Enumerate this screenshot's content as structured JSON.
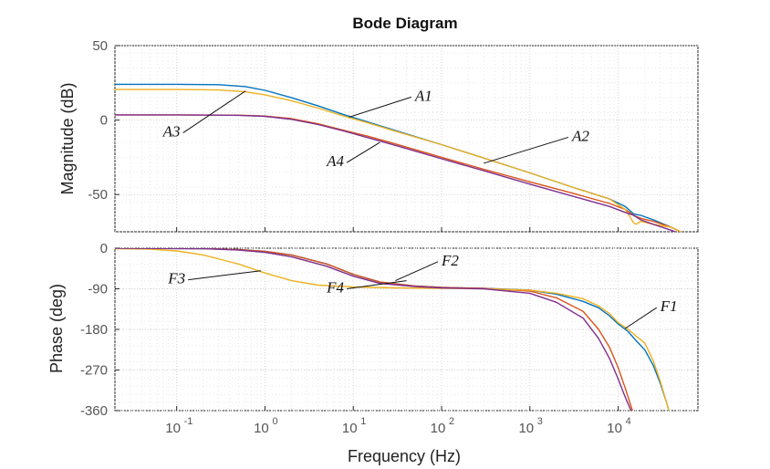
{
  "chart_data": {
    "type": "line",
    "title": "Bode Diagram",
    "xlabel": "Frequency (Hz)",
    "x_scale": "log",
    "xlim": [
      0.02,
      80000
    ],
    "x_ticks": [
      {
        "value": 0.1,
        "base": "10",
        "exp": "-1"
      },
      {
        "value": 1,
        "base": "10",
        "exp": "0"
      },
      {
        "value": 10,
        "base": "10",
        "exp": "1"
      },
      {
        "value": 100,
        "base": "10",
        "exp": "2"
      },
      {
        "value": 1000,
        "base": "10",
        "exp": "3"
      },
      {
        "value": 10000,
        "base": "10",
        "exp": "4"
      }
    ],
    "grid": true,
    "colors": {
      "A1": "#0072bd",
      "A2": "#d95319",
      "A3": "#edb120",
      "A4": "#7e2f8e"
    },
    "panels": [
      {
        "id": "magnitude",
        "ylabel": "Magnitude (dB)",
        "ylim": [
          -75,
          50
        ],
        "y_ticks": [
          "50",
          "0",
          "-50"
        ],
        "y_tick_values": [
          50,
          0,
          -50
        ],
        "series": [
          {
            "name": "A1",
            "color_key": "A1",
            "x": [
              0.02,
              0.1,
              0.3,
              0.6,
              1,
              2,
              4,
              8,
              15,
              30,
              100,
              300,
              1000,
              3000,
              8000,
              12000,
              15000,
              18000,
              25000,
              40000,
              60000,
              80000
            ],
            "values": [
              24,
              24,
              23.8,
              22.5,
              20,
              15,
              9.5,
              3.5,
              -1.5,
              -7,
              -16.5,
              -25.5,
              -35.5,
              -45,
              -53,
              -58,
              -63,
              -64,
              -67,
              -72,
              -77,
              -80
            ]
          },
          {
            "name": "A2",
            "color_key": "A2",
            "x": [
              0.02,
              0.1,
              0.5,
              1,
              2,
              4,
              8,
              15,
              30,
              100,
              300,
              1000,
              3000,
              8000,
              12000,
              15000,
              18000,
              25000,
              40000,
              60000,
              80000
            ],
            "values": [
              3.5,
              3.5,
              3.3,
              2.7,
              1,
              -2.5,
              -7,
              -11,
              -16,
              -25,
              -33,
              -41.5,
              -49,
              -56,
              -60,
              -64,
              -66,
              -68,
              -72,
              -77,
              -80
            ]
          },
          {
            "name": "A3",
            "color_key": "A3",
            "x": [
              0.02,
              0.1,
              0.3,
              0.6,
              1,
              2,
              4,
              8,
              15,
              30,
              100,
              300,
              1000,
              3000,
              8000,
              12000,
              15000,
              16000,
              18000,
              25000,
              40000,
              60000,
              80000
            ],
            "values": [
              20.5,
              20.5,
              20.2,
              19,
              17,
              13,
              8,
              2.5,
              -2,
              -7.5,
              -16.5,
              -25.5,
              -35.5,
              -45,
              -53,
              -60,
              -69,
              -70,
              -68,
              -70,
              -72,
              -77,
              -80
            ]
          },
          {
            "name": "A4",
            "color_key": "A4",
            "x": [
              0.02,
              0.1,
              0.5,
              1,
              2,
              4,
              8,
              15,
              30,
              100,
              300,
              1000,
              3000,
              8000,
              12000,
              15000,
              18000,
              25000,
              40000,
              60000,
              80000
            ],
            "values": [
              3.5,
              3.5,
              3.2,
              2.5,
              0.5,
              -3,
              -7.5,
              -12,
              -17,
              -26,
              -34,
              -43,
              -51,
              -58,
              -62,
              -64,
              -67,
              -70,
              -74,
              -78,
              -81
            ]
          }
        ],
        "annotations": [
          {
            "label": "A1",
            "target": [
              9,
              2
            ],
            "text_at": [
              50,
              13
            ]
          },
          {
            "label": "A2",
            "target": [
              300,
              -29
            ],
            "text_at": [
              3000,
              -14
            ]
          },
          {
            "label": "A3",
            "target": [
              0.6,
              19.5
            ],
            "text_at": [
              0.07,
              -11
            ]
          },
          {
            "label": "A4",
            "target": [
              20,
              -15
            ],
            "text_at": [
              5,
              -31
            ]
          }
        ]
      },
      {
        "id": "phase",
        "ylabel": "Phase (deg)",
        "ylim": [
          -360,
          0
        ],
        "y_ticks": [
          "0",
          "-90",
          "-180",
          "-270",
          "-360"
        ],
        "y_tick_values": [
          0,
          -90,
          -180,
          -270,
          -360
        ],
        "series": [
          {
            "name": "F1",
            "color_key": "A1",
            "x": [
              0.02,
              0.2,
              0.5,
              1,
              2,
              5,
              10,
              20,
              50,
              100,
              300,
              1000,
              2000,
              4000,
              6000,
              8000,
              10000,
              13000,
              16000,
              20000,
              25000,
              30000,
              35000,
              40000
            ],
            "values": [
              0,
              -1,
              -3,
              -7,
              -15,
              -35,
              -58,
              -75,
              -84,
              -87,
              -89,
              -93,
              -102,
              -118,
              -132,
              -150,
              -168,
              -185,
              -205,
              -225,
              -260,
              -300,
              -340,
              -380
            ]
          },
          {
            "name": "F2",
            "color_key": "A2",
            "x": [
              0.02,
              0.2,
              0.5,
              1,
              2,
              5,
              10,
              20,
              50,
              100,
              300,
              1000,
              2000,
              4000,
              6000,
              8000,
              10000,
              12000,
              14000,
              15000,
              16000
            ],
            "values": [
              0,
              -1,
              -3,
              -7,
              -15,
              -35,
              -58,
              -75,
              -84,
              -87,
              -89,
              -95,
              -110,
              -140,
              -180,
              -220,
              -265,
              -310,
              -350,
              -370,
              -390
            ]
          },
          {
            "name": "F3",
            "color_key": "A3",
            "x": [
              0.02,
              0.05,
              0.1,
              0.2,
              0.5,
              1,
              2,
              4,
              10,
              30,
              100,
              300,
              1000,
              2000,
              4000,
              6000,
              8000,
              10000,
              13000,
              16000,
              20000,
              25000,
              30000,
              35000,
              40000
            ],
            "values": [
              -1,
              -2,
              -6,
              -15,
              -35,
              -55,
              -72,
              -82,
              -86,
              -88,
              -89,
              -90,
              -93,
              -100,
              -112,
              -128,
              -145,
              -165,
              -180,
              -195,
              -210,
              -250,
              -295,
              -340,
              -380
            ]
          },
          {
            "name": "F4",
            "color_key": "A4",
            "x": [
              0.02,
              0.2,
              0.5,
              1,
              2,
              5,
              10,
              20,
              50,
              100,
              300,
              1000,
              2000,
              4000,
              6000,
              8000,
              10000,
              12000,
              14000,
              15000,
              16000
            ],
            "values": [
              0,
              -1,
              -4,
              -9,
              -19,
              -40,
              -62,
              -78,
              -85,
              -88,
              -90,
              -100,
              -120,
              -155,
              -200,
              -245,
              -290,
              -330,
              -360,
              -380,
              -390
            ]
          }
        ],
        "annotations": [
          {
            "label": "F1",
            "target": [
              12000,
              -178
            ],
            "text_at": [
              30000,
              -140
            ]
          },
          {
            "label": "F2",
            "target": [
              30,
              -72
            ],
            "text_at": [
              100,
              -38
            ]
          },
          {
            "label": "F3",
            "target": [
              0.9,
              -50
            ],
            "text_at": [
              0.08,
              -78
            ]
          },
          {
            "label": "F4",
            "target": [
              40,
              -72
            ],
            "text_at": [
              5,
              -98
            ]
          }
        ]
      }
    ]
  }
}
